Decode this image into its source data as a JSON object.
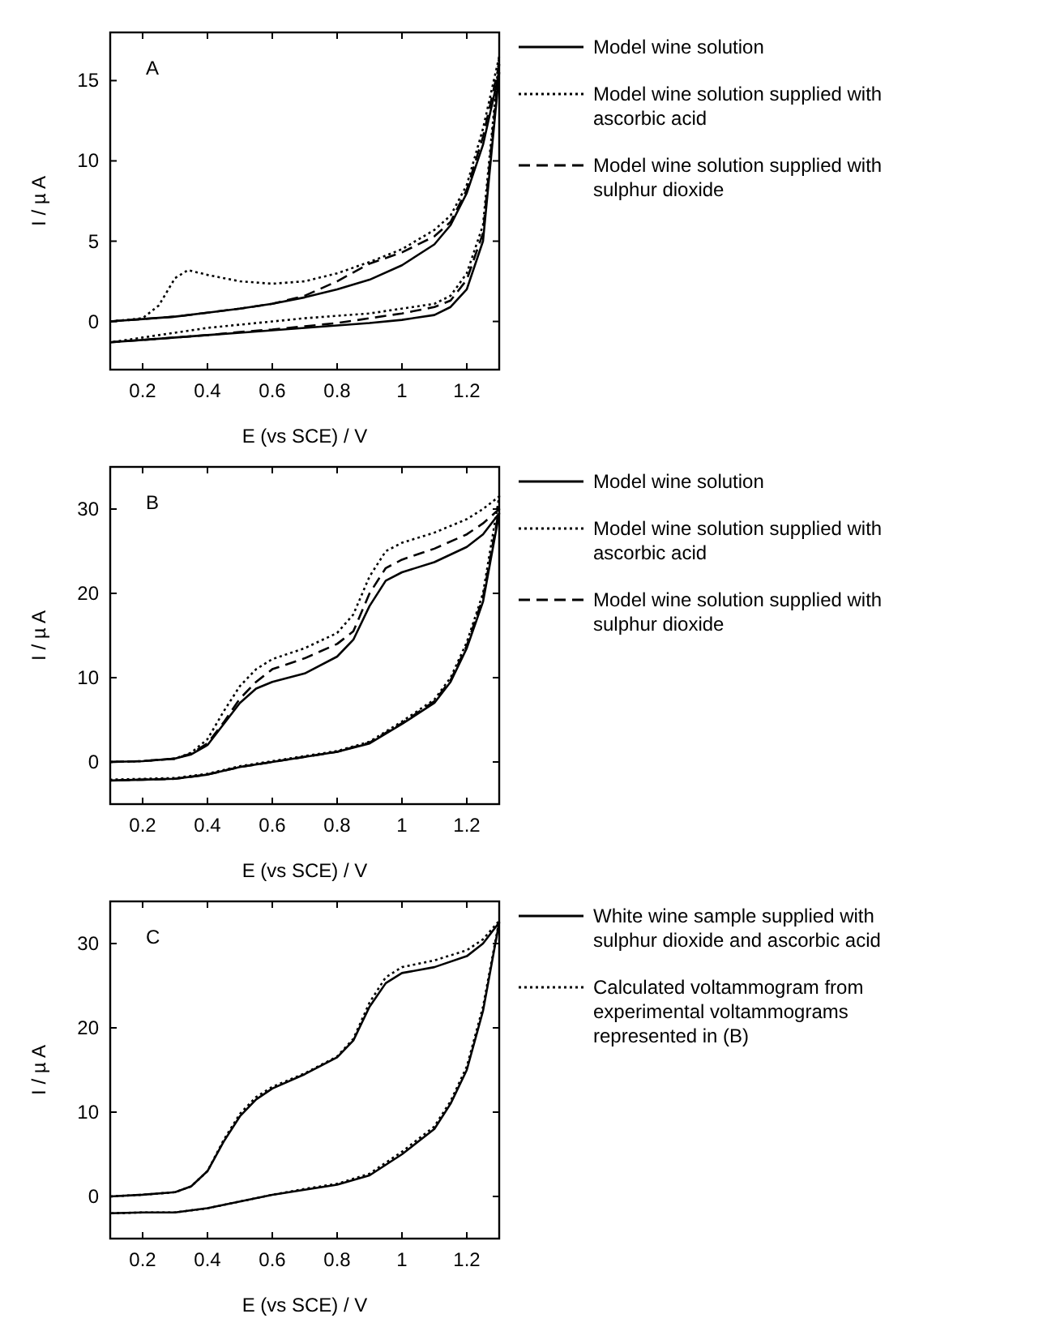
{
  "chart_data": [
    {
      "type": "line",
      "annotations": [
        "A"
      ],
      "xlabel": "E (vs SCE) / V",
      "ylabel": "I / µ A",
      "xlim": [
        0.1,
        1.3
      ],
      "ylim": [
        -3,
        18
      ],
      "xticks": [
        0.2,
        0.4,
        0.6,
        0.8,
        1,
        1.2
      ],
      "yticks": [
        0,
        5,
        10,
        15
      ],
      "legend": "right",
      "grid": false,
      "series": [
        {
          "name": "Model wine solution",
          "color": "#000000",
          "line_style": "solid",
          "x": [
            0.1,
            0.2,
            0.3,
            0.4,
            0.5,
            0.6,
            0.7,
            0.8,
            0.9,
            1.0,
            1.1,
            1.15,
            1.2,
            1.25,
            1.3,
            1.25,
            1.2,
            1.15,
            1.1,
            1.0,
            0.9,
            0.8,
            0.7,
            0.6,
            0.5,
            0.4,
            0.3,
            0.2,
            0.1
          ],
          "values": [
            0,
            0.15,
            0.3,
            0.55,
            0.8,
            1.1,
            1.5,
            2.0,
            2.6,
            3.5,
            4.8,
            6,
            8,
            11,
            15.5,
            5,
            2,
            0.9,
            0.4,
            0.1,
            -0.1,
            -0.25,
            -0.4,
            -0.55,
            -0.7,
            -0.85,
            -1.0,
            -1.15,
            -1.3
          ]
        },
        {
          "name": "Model wine solution supplied with ascorbic acid",
          "color": "#000000",
          "line_style": "dotted",
          "x": [
            0.1,
            0.2,
            0.25,
            0.3,
            0.34,
            0.4,
            0.5,
            0.6,
            0.7,
            0.8,
            0.9,
            1.0,
            1.1,
            1.15,
            1.2,
            1.25,
            1.3,
            1.25,
            1.2,
            1.15,
            1.1,
            1.0,
            0.9,
            0.8,
            0.7,
            0.6,
            0.5,
            0.4,
            0.3,
            0.2,
            0.1
          ],
          "values": [
            0,
            0.2,
            1,
            2.7,
            3.2,
            2.9,
            2.5,
            2.35,
            2.5,
            3.0,
            3.7,
            4.5,
            5.7,
            6.6,
            8.5,
            12,
            16.5,
            6,
            3,
            1.6,
            1.1,
            0.8,
            0.5,
            0.35,
            0.2,
            0,
            -0.2,
            -0.4,
            -0.7,
            -1.0,
            -1.3
          ]
        },
        {
          "name": "Model wine solution supplied with sulphur dioxide",
          "color": "#000000",
          "line_style": "dashed",
          "x": [
            0.1,
            0.2,
            0.3,
            0.4,
            0.5,
            0.6,
            0.7,
            0.8,
            0.9,
            1.0,
            1.1,
            1.15,
            1.2,
            1.25,
            1.3,
            1.25,
            1.2,
            1.15,
            1.1,
            1.0,
            0.9,
            0.8,
            0.7,
            0.6,
            0.5,
            0.4,
            0.3,
            0.2,
            0.1
          ],
          "values": [
            0,
            0.15,
            0.3,
            0.55,
            0.8,
            1.1,
            1.6,
            2.5,
            3.6,
            4.3,
            5.3,
            6.2,
            8.2,
            11.5,
            16,
            5.5,
            2.6,
            1.3,
            0.9,
            0.5,
            0.2,
            -0.1,
            -0.3,
            -0.5,
            -0.65,
            -0.85,
            -1.0,
            -1.15,
            -1.3
          ]
        }
      ]
    },
    {
      "type": "line",
      "annotations": [
        "B"
      ],
      "xlabel": "E (vs SCE) / V",
      "ylabel": "I / µ A",
      "xlim": [
        0.1,
        1.3
      ],
      "ylim": [
        -5,
        35
      ],
      "xticks": [
        0.2,
        0.4,
        0.6,
        0.8,
        1,
        1.2
      ],
      "yticks": [
        0,
        10,
        20,
        30
      ],
      "legend": "right",
      "grid": false,
      "series": [
        {
          "name": "Model wine solution",
          "color": "#000000",
          "line_style": "solid",
          "x": [
            0.1,
            0.2,
            0.3,
            0.35,
            0.4,
            0.45,
            0.5,
            0.55,
            0.6,
            0.7,
            0.8,
            0.85,
            0.9,
            0.95,
            1.0,
            1.1,
            1.2,
            1.25,
            1.3,
            1.25,
            1.2,
            1.15,
            1.1,
            1.0,
            0.9,
            0.8,
            0.7,
            0.6,
            0.5,
            0.4,
            0.3,
            0.2,
            0.1
          ],
          "values": [
            0,
            0.1,
            0.4,
            0.9,
            2,
            4.5,
            7,
            8.7,
            9.5,
            10.5,
            12.5,
            14.5,
            18.5,
            21.5,
            22.5,
            23.7,
            25.5,
            27,
            29.5,
            19,
            13.5,
            9.5,
            7,
            4.5,
            2.2,
            1.2,
            0.6,
            0,
            -0.6,
            -1.5,
            -2,
            -2.1,
            -2.2
          ]
        },
        {
          "name": "Model wine solution supplied with ascorbic acid",
          "color": "#000000",
          "line_style": "dotted",
          "x": [
            0.1,
            0.2,
            0.3,
            0.35,
            0.4,
            0.45,
            0.5,
            0.55,
            0.6,
            0.7,
            0.8,
            0.85,
            0.9,
            0.95,
            1.0,
            1.1,
            1.2,
            1.25,
            1.3,
            1.25,
            1.2,
            1.15,
            1.1,
            1.0,
            0.9,
            0.8,
            0.7,
            0.6,
            0.5,
            0.4,
            0.3,
            0.2,
            0.1
          ],
          "values": [
            0,
            0.1,
            0.4,
            1.1,
            2.7,
            6,
            9,
            11,
            12.2,
            13.5,
            15.3,
            17.5,
            22,
            25,
            26,
            27.2,
            28.8,
            30,
            31.5,
            20,
            14.2,
            10,
            7.4,
            4.8,
            2.4,
            1.3,
            0.7,
            0.1,
            -0.5,
            -1.4,
            -1.9,
            -2.0,
            -2.1
          ]
        },
        {
          "name": "Model wine solution supplied with sulphur dioxide",
          "color": "#000000",
          "line_style": "dashed",
          "x": [
            0.1,
            0.2,
            0.3,
            0.35,
            0.4,
            0.45,
            0.5,
            0.55,
            0.6,
            0.7,
            0.8,
            0.85,
            0.9,
            0.95,
            1.0,
            1.1,
            1.2,
            1.25,
            1.3,
            1.25,
            1.2,
            1.15,
            1.1,
            1.0,
            0.9,
            0.8,
            0.7,
            0.6,
            0.5,
            0.4,
            0.3,
            0.2,
            0.1
          ],
          "values": [
            0,
            0.1,
            0.4,
            1.0,
            2.2,
            4.7,
            7.5,
            9.5,
            11,
            12.3,
            14,
            15.5,
            20,
            23,
            24,
            25.3,
            27,
            28.3,
            30,
            19.5,
            13.8,
            9.7,
            7.2,
            4.6,
            2.3,
            1.2,
            0.6,
            0,
            -0.6,
            -1.5,
            -2,
            -2.1,
            -2.2
          ]
        }
      ]
    },
    {
      "type": "line",
      "annotations": [
        "C"
      ],
      "xlabel": "E (vs SCE) / V",
      "ylabel": "I / µ A",
      "xlim": [
        0.1,
        1.3
      ],
      "ylim": [
        -5,
        35
      ],
      "xticks": [
        0.2,
        0.4,
        0.6,
        0.8,
        1,
        1.2
      ],
      "yticks": [
        0,
        10,
        20,
        30
      ],
      "legend": "right",
      "grid": false,
      "series": [
        {
          "name": "White wine sample supplied with sulphur dioxide and ascorbic acid",
          "color": "#000000",
          "line_style": "solid",
          "x": [
            0.1,
            0.2,
            0.3,
            0.35,
            0.4,
            0.45,
            0.5,
            0.55,
            0.6,
            0.7,
            0.8,
            0.85,
            0.9,
            0.95,
            1.0,
            1.1,
            1.2,
            1.25,
            1.3,
            1.25,
            1.2,
            1.15,
            1.1,
            1.0,
            0.9,
            0.8,
            0.7,
            0.6,
            0.5,
            0.4,
            0.3,
            0.2,
            0.1
          ],
          "values": [
            0,
            0.2,
            0.5,
            1.2,
            3,
            6.5,
            9.5,
            11.5,
            12.8,
            14.5,
            16.5,
            18.5,
            22.5,
            25.3,
            26.5,
            27.2,
            28.5,
            30,
            32.5,
            22,
            15,
            11,
            8,
            5,
            2.5,
            1.4,
            0.8,
            0.2,
            -0.6,
            -1.4,
            -1.9,
            -1.9,
            -2.0
          ]
        },
        {
          "name": "Calculated voltammogram from experimental voltammograms represented in (B)",
          "color": "#000000",
          "line_style": "dotted",
          "x": [
            0.1,
            0.2,
            0.3,
            0.35,
            0.4,
            0.45,
            0.5,
            0.55,
            0.6,
            0.7,
            0.8,
            0.85,
            0.9,
            0.95,
            1.0,
            1.1,
            1.2,
            1.25,
            1.3,
            1.25,
            1.2,
            1.15,
            1.1,
            1.0,
            0.9,
            0.8,
            0.7,
            0.6,
            0.5,
            0.4,
            0.3,
            0.2,
            0.1
          ],
          "values": [
            0,
            0.2,
            0.5,
            1.2,
            3,
            6.7,
            9.8,
            11.8,
            13,
            14.6,
            16.6,
            18.7,
            23,
            26,
            27.2,
            28,
            29.2,
            30.5,
            32.7,
            22.5,
            15.4,
            11.3,
            8.3,
            5.3,
            2.7,
            1.5,
            0.9,
            0.2,
            -0.6,
            -1.4,
            -1.9,
            -1.9,
            -2.0
          ]
        }
      ]
    }
  ]
}
